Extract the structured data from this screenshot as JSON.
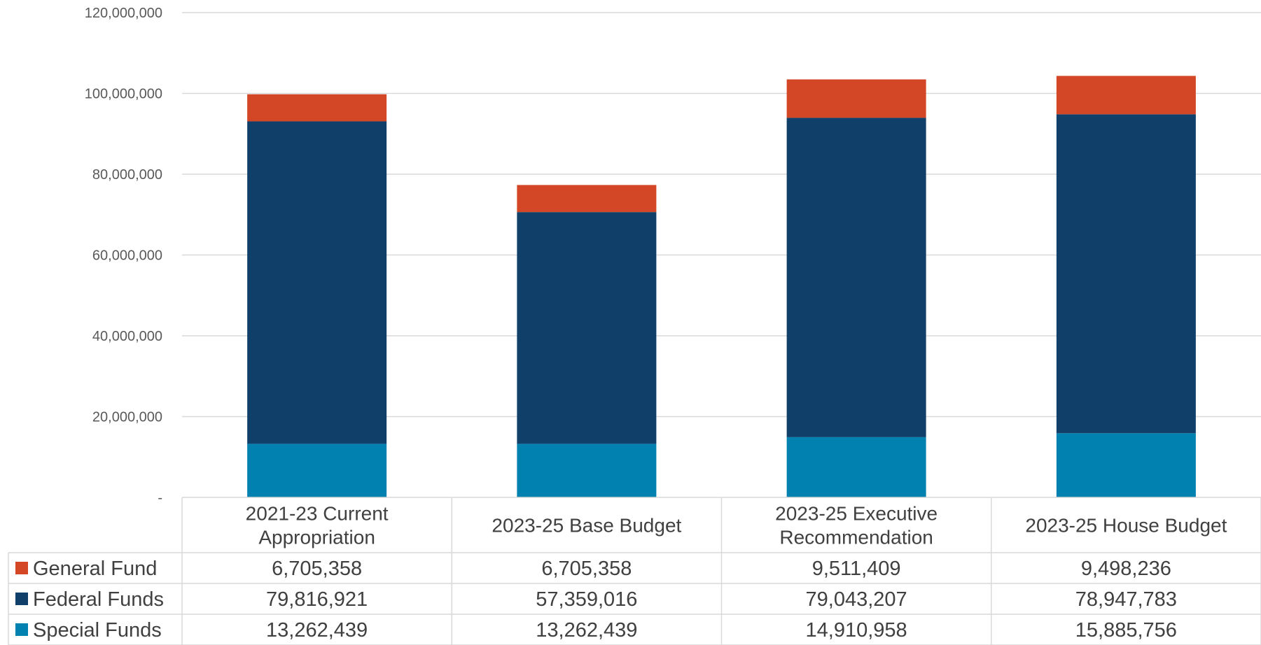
{
  "chart_data": {
    "type": "bar",
    "stacked": true,
    "categories": [
      [
        "2021-23 Current",
        "Appropriation"
      ],
      [
        "2023-25 Base Budget"
      ],
      [
        "2023-25 Executive",
        "Recommendation"
      ],
      [
        "2023-25 House Budget"
      ]
    ],
    "series": [
      {
        "name": "Special Funds",
        "color": "#0081B0",
        "values": [
          13262439,
          13262439,
          14910958,
          15885756
        ],
        "labels": [
          "13,262,439",
          "13,262,439",
          "14,910,958",
          "15,885,756"
        ]
      },
      {
        "name": "Federal Funds",
        "color": "#10406A",
        "values": [
          79816921,
          57359016,
          79043207,
          78947783
        ],
        "labels": [
          "79,816,921",
          "57,359,016",
          "79,043,207",
          "78,947,783"
        ]
      },
      {
        "name": "General Fund",
        "color": "#D44726",
        "values": [
          6705358,
          6705358,
          9511409,
          9498236
        ],
        "labels": [
          "6,705,358",
          "6,705,358",
          "9,511,409",
          "9,498,236"
        ]
      }
    ],
    "table_row_order": [
      "General Fund",
      "Federal Funds",
      "Special Funds"
    ],
    "ylim": [
      0,
      120000000
    ],
    "yticks": [
      0,
      20000000,
      40000000,
      60000000,
      80000000,
      100000000,
      120000000
    ],
    "ytick_labels": [
      "-",
      "20,000,000",
      "40,000,000",
      "60,000,000",
      "80,000,000",
      "100,000,000",
      "120,000,000"
    ],
    "grid": true,
    "legend": "data-table"
  }
}
